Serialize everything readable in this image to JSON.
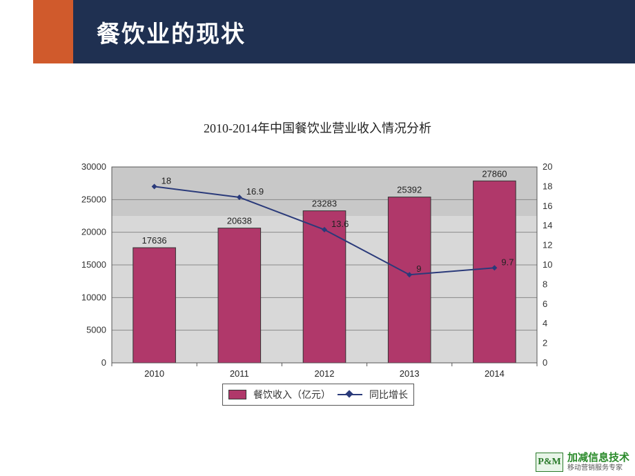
{
  "header": {
    "title": "餐饮业的现状",
    "band_color": "#1f3051",
    "accent_color": "#d05a2c"
  },
  "chart": {
    "title": "2010-2014年中国餐饮业营业收入情况分析",
    "type": "bar+line",
    "categories": [
      "2010",
      "2011",
      "2012",
      "2013",
      "2014"
    ],
    "bar_series": {
      "label": "餐饮收入（亿元）",
      "values": [
        17636,
        20638,
        23283,
        25392,
        27860
      ],
      "color": "#b0386a",
      "border_color": "#333333",
      "bar_width": 0.5
    },
    "line_series": {
      "label": "同比增长",
      "values": [
        18,
        16.9,
        13.6,
        9,
        9.7
      ],
      "point_labels": [
        "18",
        "16.9",
        "13.6",
        "9",
        "9.7"
      ],
      "color": "#2a3a7a",
      "marker": "diamond",
      "marker_size": 8,
      "line_width": 2
    },
    "y_left": {
      "min": 0,
      "max": 30000,
      "step": 5000,
      "ticks": [
        0,
        5000,
        10000,
        15000,
        20000,
        25000,
        30000
      ]
    },
    "y_right": {
      "min": 0,
      "max": 20,
      "step": 2,
      "ticks": [
        0,
        2,
        4,
        6,
        8,
        10,
        12,
        14,
        16,
        18,
        20
      ]
    },
    "plot_bg": "#d8d8d8",
    "plot_bg_gradient_top": "#c8c8c8",
    "grid_color": "#888888",
    "axis_color": "#555555",
    "tick_font_size": 13,
    "title_font_size": 18,
    "title_font_family": "SimSun"
  },
  "legend": {
    "items": [
      {
        "swatch": "box",
        "color": "#b0386a",
        "label": "餐饮收入（亿元）"
      },
      {
        "swatch": "line-diamond",
        "color": "#2a3a7a",
        "label": "同比增长"
      }
    ]
  },
  "footer": {
    "badge": "P&M",
    "line1": "加减信息技术",
    "line2": "移动营销服务专家"
  }
}
